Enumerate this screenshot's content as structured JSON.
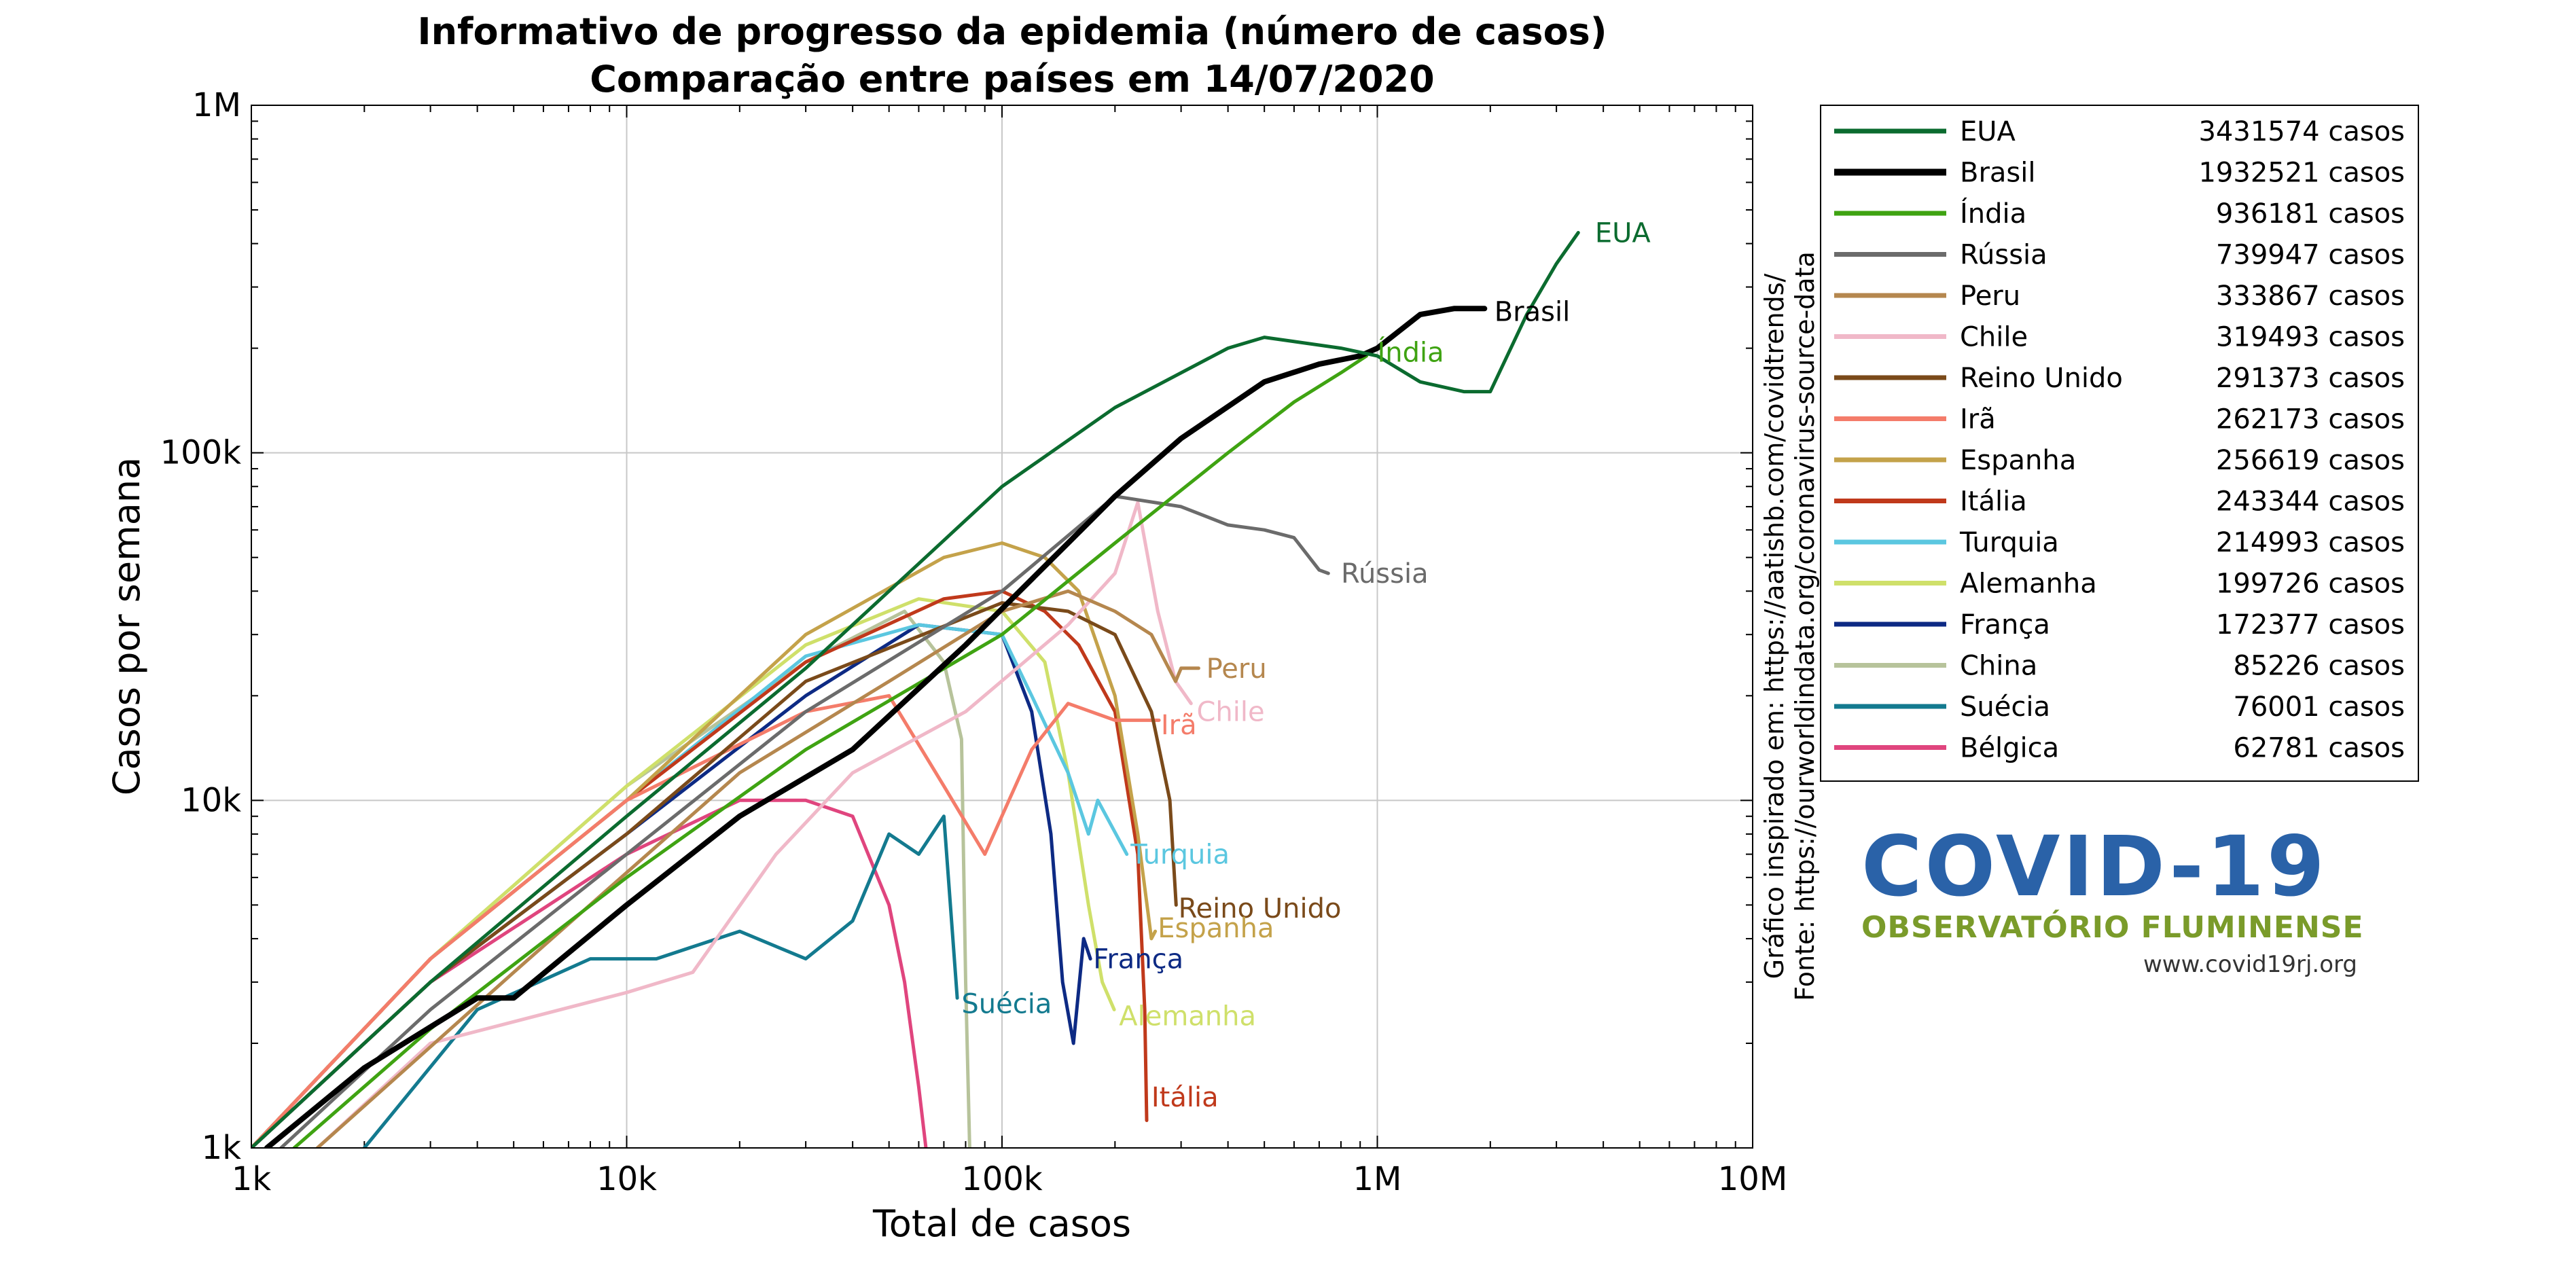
{
  "chart_data": {
    "type": "line",
    "title": "Informativo de progresso da epidemia (número de casos)",
    "subtitle": "Comparação entre países em 14/07/2020",
    "xlabel": "Total de casos",
    "ylabel": "Casos por semana",
    "xscale": "log",
    "yscale": "log",
    "xlim": [
      1000,
      10000000
    ],
    "ylim": [
      1000,
      1000000
    ],
    "xticks": [
      1000,
      10000,
      100000,
      1000000,
      10000000
    ],
    "xtick_labels": [
      "1k",
      "10k",
      "100k",
      "1M",
      "10M"
    ],
    "yticks": [
      1000,
      10000,
      100000,
      1000000
    ],
    "ytick_labels": [
      "1k",
      "10k",
      "100k",
      "1M"
    ],
    "grid": true,
    "legend_position": "right",
    "series": [
      {
        "name": "EUA",
        "legend_value": "3431574 casos",
        "color": "#0b6b2f",
        "width": 5,
        "points": [
          [
            1000,
            1000
          ],
          [
            3000,
            3000
          ],
          [
            10000,
            9000
          ],
          [
            30000,
            24000
          ],
          [
            100000,
            80000
          ],
          [
            200000,
            135000
          ],
          [
            400000,
            200000
          ],
          [
            500000,
            215000
          ],
          [
            800000,
            200000
          ],
          [
            1000000,
            190000
          ],
          [
            1300000,
            160000
          ],
          [
            1700000,
            150000
          ],
          [
            2000000,
            150000
          ],
          [
            2500000,
            250000
          ],
          [
            3000000,
            350000
          ],
          [
            3430000,
            430000
          ]
        ]
      },
      {
        "name": "Brasil",
        "legend_value": "1932521 casos",
        "color": "#000000",
        "width": 8,
        "points": [
          [
            1100,
            1000
          ],
          [
            2000,
            1700
          ],
          [
            4000,
            2700
          ],
          [
            5000,
            2700
          ],
          [
            10000,
            5000
          ],
          [
            20000,
            9000
          ],
          [
            40000,
            14000
          ],
          [
            80000,
            28000
          ],
          [
            150000,
            55000
          ],
          [
            200000,
            75000
          ],
          [
            300000,
            110000
          ],
          [
            500000,
            160000
          ],
          [
            700000,
            180000
          ],
          [
            900000,
            190000
          ],
          [
            1000000,
            200000
          ],
          [
            1300000,
            250000
          ],
          [
            1600000,
            260000
          ],
          [
            1930000,
            260000
          ]
        ]
      },
      {
        "name": "Índia",
        "legend_value": "936181 casos",
        "color": "#3fa312",
        "width": 5,
        "points": [
          [
            1300,
            1000
          ],
          [
            3000,
            2200
          ],
          [
            10000,
            6000
          ],
          [
            30000,
            14000
          ],
          [
            100000,
            30000
          ],
          [
            200000,
            55000
          ],
          [
            400000,
            100000
          ],
          [
            600000,
            140000
          ],
          [
            800000,
            170000
          ],
          [
            936000,
            190000
          ]
        ]
      },
      {
        "name": "Rússia",
        "legend_value": "739947 casos",
        "color": "#6b6b6b",
        "width": 5,
        "points": [
          [
            1200,
            1000
          ],
          [
            3000,
            2500
          ],
          [
            10000,
            7000
          ],
          [
            30000,
            18000
          ],
          [
            100000,
            40000
          ],
          [
            200000,
            75000
          ],
          [
            300000,
            70000
          ],
          [
            400000,
            62000
          ],
          [
            500000,
            60000
          ],
          [
            600000,
            57000
          ],
          [
            700000,
            46000
          ],
          [
            740000,
            45000
          ]
        ]
      },
      {
        "name": "Peru",
        "legend_value": "333867 casos",
        "color": "#b5874e",
        "width": 5,
        "points": [
          [
            1500,
            1000
          ],
          [
            5000,
            3200
          ],
          [
            20000,
            12000
          ],
          [
            50000,
            22000
          ],
          [
            100000,
            35000
          ],
          [
            150000,
            40000
          ],
          [
            200000,
            35000
          ],
          [
            250000,
            30000
          ],
          [
            290000,
            22000
          ],
          [
            300000,
            24000
          ],
          [
            334000,
            24000
          ]
        ]
      },
      {
        "name": "Chile",
        "legend_value": "319493 casos",
        "color": "#f0b8c8",
        "width": 5,
        "points": [
          [
            1500,
            1000
          ],
          [
            3000,
            2000
          ],
          [
            10000,
            2800
          ],
          [
            15000,
            3200
          ],
          [
            25000,
            7000
          ],
          [
            40000,
            12000
          ],
          [
            80000,
            18000
          ],
          [
            150000,
            32000
          ],
          [
            200000,
            45000
          ],
          [
            230000,
            72000
          ],
          [
            260000,
            35000
          ],
          [
            290000,
            22000
          ],
          [
            319000,
            19000
          ]
        ]
      },
      {
        "name": "Reino Unido",
        "legend_value": "291373 casos",
        "color": "#7a4a1a",
        "width": 5,
        "points": [
          [
            1000,
            1000
          ],
          [
            3000,
            3000
          ],
          [
            10000,
            8000
          ],
          [
            30000,
            22000
          ],
          [
            100000,
            37000
          ],
          [
            150000,
            35000
          ],
          [
            200000,
            30000
          ],
          [
            250000,
            18000
          ],
          [
            280000,
            10000
          ],
          [
            291000,
            5000
          ]
        ]
      },
      {
        "name": "Irã",
        "legend_value": "262173 casos",
        "color": "#f47c6a",
        "width": 5,
        "points": [
          [
            1000,
            1000
          ],
          [
            3000,
            3500
          ],
          [
            10000,
            10000
          ],
          [
            30000,
            18000
          ],
          [
            50000,
            20000
          ],
          [
            70000,
            11000
          ],
          [
            90000,
            7000
          ],
          [
            120000,
            14000
          ],
          [
            150000,
            19000
          ],
          [
            200000,
            17000
          ],
          [
            262000,
            17000
          ]
        ]
      },
      {
        "name": "Espanha",
        "legend_value": "256619 casos",
        "color": "#c4a24a",
        "width": 5,
        "points": [
          [
            1000,
            1000
          ],
          [
            3000,
            3500
          ],
          [
            10000,
            10000
          ],
          [
            30000,
            30000
          ],
          [
            70000,
            50000
          ],
          [
            100000,
            55000
          ],
          [
            130000,
            50000
          ],
          [
            160000,
            40000
          ],
          [
            200000,
            20000
          ],
          [
            230000,
            8000
          ],
          [
            250000,
            4000
          ],
          [
            256000,
            4200
          ]
        ]
      },
      {
        "name": "Itália",
        "legend_value": "243344 casos",
        "color": "#c0391b",
        "width": 5,
        "points": [
          [
            1000,
            1000
          ],
          [
            3000,
            3500
          ],
          [
            10000,
            10000
          ],
          [
            30000,
            25000
          ],
          [
            70000,
            38000
          ],
          [
            100000,
            40000
          ],
          [
            130000,
            35000
          ],
          [
            160000,
            28000
          ],
          [
            200000,
            18000
          ],
          [
            230000,
            7000
          ],
          [
            240000,
            2500
          ],
          [
            243000,
            1200
          ]
        ]
      },
      {
        "name": "Turquia",
        "legend_value": "214993 casos",
        "color": "#5bc7e0",
        "width": 5,
        "points": [
          [
            1000,
            1000
          ],
          [
            3000,
            3500
          ],
          [
            10000,
            10000
          ],
          [
            30000,
            26000
          ],
          [
            60000,
            32000
          ],
          [
            100000,
            30000
          ],
          [
            120000,
            20000
          ],
          [
            150000,
            12000
          ],
          [
            170000,
            8000
          ],
          [
            180000,
            10000
          ],
          [
            215000,
            7000
          ]
        ]
      },
      {
        "name": "Alemanha",
        "legend_value": "199726 casos",
        "color": "#cfe06a",
        "width": 5,
        "points": [
          [
            1000,
            1000
          ],
          [
            3000,
            3500
          ],
          [
            10000,
            11000
          ],
          [
            30000,
            28000
          ],
          [
            60000,
            38000
          ],
          [
            100000,
            35000
          ],
          [
            130000,
            25000
          ],
          [
            150000,
            12000
          ],
          [
            170000,
            5000
          ],
          [
            185000,
            3000
          ],
          [
            199000,
            2500
          ]
        ]
      },
      {
        "name": "França",
        "legend_value": "172377 casos",
        "color": "#0d2a84",
        "width": 5,
        "points": [
          [
            1000,
            1000
          ],
          [
            3000,
            3000
          ],
          [
            10000,
            8000
          ],
          [
            30000,
            20000
          ],
          [
            60000,
            32000
          ],
          [
            100000,
            30000
          ],
          [
            120000,
            18000
          ],
          [
            135000,
            8000
          ],
          [
            145000,
            3000
          ],
          [
            155000,
            2000
          ],
          [
            165000,
            4000
          ],
          [
            172000,
            3500
          ]
        ]
      },
      {
        "name": "China",
        "legend_value": "85226 casos",
        "color": "#b7c39b",
        "width": 5,
        "points": [
          [
            1000,
            1000
          ],
          [
            3000,
            3500
          ],
          [
            10000,
            11000
          ],
          [
            30000,
            25000
          ],
          [
            55000,
            35000
          ],
          [
            70000,
            25000
          ],
          [
            78000,
            15000
          ],
          [
            80000,
            3000
          ],
          [
            82000,
            1000
          ]
        ]
      },
      {
        "name": "Suécia",
        "legend_value": "76001 casos",
        "color": "#137a8f",
        "width": 5,
        "points": [
          [
            2000,
            1000
          ],
          [
            4000,
            2500
          ],
          [
            8000,
            3500
          ],
          [
            12000,
            3500
          ],
          [
            20000,
            4200
          ],
          [
            30000,
            3500
          ],
          [
            40000,
            4500
          ],
          [
            50000,
            8000
          ],
          [
            60000,
            7000
          ],
          [
            70000,
            9000
          ],
          [
            76000,
            2700
          ]
        ]
      },
      {
        "name": "Bélgica",
        "legend_value": "62781 casos",
        "color": "#e0457e",
        "width": 5,
        "points": [
          [
            1000,
            1000
          ],
          [
            3000,
            3000
          ],
          [
            10000,
            7000
          ],
          [
            20000,
            10000
          ],
          [
            30000,
            10000
          ],
          [
            40000,
            9000
          ],
          [
            50000,
            5000
          ],
          [
            55000,
            3000
          ],
          [
            60000,
            1500
          ],
          [
            62700,
            1000
          ]
        ]
      }
    ]
  },
  "series_labels": [
    {
      "text": "EUA",
      "anchor_x": 3800000,
      "anchor_y": 430000,
      "color": "#0b6b2f"
    },
    {
      "text": "Brasil",
      "anchor_x": 2050000,
      "anchor_y": 255000,
      "color": "#000000"
    },
    {
      "text": "Índia",
      "anchor_x": 1000000,
      "anchor_y": 195000,
      "color": "#3fa312"
    },
    {
      "text": "Rússia",
      "anchor_x": 800000,
      "anchor_y": 45000,
      "color": "#6b6b6b"
    },
    {
      "text": "Peru",
      "anchor_x": 350000,
      "anchor_y": 24000,
      "color": "#b5874e"
    },
    {
      "text": "Chile",
      "anchor_x": 330000,
      "anchor_y": 18000,
      "color": "#f0b8c8"
    },
    {
      "text": "Irã",
      "anchor_x": 265000,
      "anchor_y": 16500,
      "color": "#f47c6a"
    },
    {
      "text": "Turquia",
      "anchor_x": 220000,
      "anchor_y": 7000,
      "color": "#5bc7e0"
    },
    {
      "text": "Reino Unido",
      "anchor_x": 295000,
      "anchor_y": 4900,
      "color": "#7a4a1a"
    },
    {
      "text": "Espanha",
      "anchor_x": 260000,
      "anchor_y": 4300,
      "color": "#c4a24a"
    },
    {
      "text": "França",
      "anchor_x": 175000,
      "anchor_y": 3500,
      "color": "#0d2a84"
    },
    {
      "text": "Suécia",
      "anchor_x": 78000,
      "anchor_y": 2600,
      "color": "#137a8f"
    },
    {
      "text": "Alemanha",
      "anchor_x": 205000,
      "anchor_y": 2400,
      "color": "#cfe06a"
    },
    {
      "text": "Itália",
      "anchor_x": 250000,
      "anchor_y": 1400,
      "color": "#c0391b"
    }
  ],
  "sources": {
    "line1": "Gráfico inspirado em: https://aatishb.com/covidtrends/",
    "line2": "Fonte: https://ourworldindata.org/coronavirus-source-data"
  },
  "logo": {
    "main": "COVID-19",
    "sub": "OBSERVATÓRIO FLUMINENSE",
    "url": "www.covid19rj.org",
    "main_color": "#2a62a8",
    "sub_color": "#7a9b2a"
  }
}
